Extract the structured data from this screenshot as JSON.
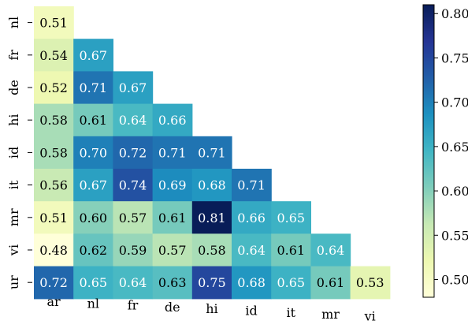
{
  "chart_data": {
    "type": "heatmap",
    "title": "",
    "xlabel": "",
    "ylabel": "",
    "x_categories": [
      "ar",
      "nl",
      "fr",
      "de",
      "hi",
      "id",
      "it",
      "mr",
      "vi"
    ],
    "y_categories": [
      "nl",
      "fr",
      "de",
      "hi",
      "id",
      "it",
      "mr",
      "vi",
      "ur"
    ],
    "values": [
      [
        0.51
      ],
      [
        0.54,
        0.67
      ],
      [
        0.52,
        0.71,
        0.67
      ],
      [
        0.58,
        0.61,
        0.64,
        0.66
      ],
      [
        0.58,
        0.7,
        0.72,
        0.71,
        0.71
      ],
      [
        0.56,
        0.67,
        0.74,
        0.69,
        0.68,
        0.71
      ],
      [
        0.51,
        0.6,
        0.57,
        0.61,
        0.81,
        0.66,
        0.65
      ],
      [
        0.48,
        0.62,
        0.59,
        0.57,
        0.58,
        0.64,
        0.61,
        0.64
      ],
      [
        0.72,
        0.65,
        0.64,
        0.63,
        0.75,
        0.68,
        0.65,
        0.61,
        0.53
      ]
    ],
    "colormap": "YlGnBu",
    "color_range": [
      0.48,
      0.81
    ],
    "colorbar_ticks": [
      "0.50",
      "0.55",
      "0.60",
      "0.65",
      "0.70",
      "0.75",
      "0.80"
    ],
    "grid": false,
    "legend": "colorbar at right"
  }
}
